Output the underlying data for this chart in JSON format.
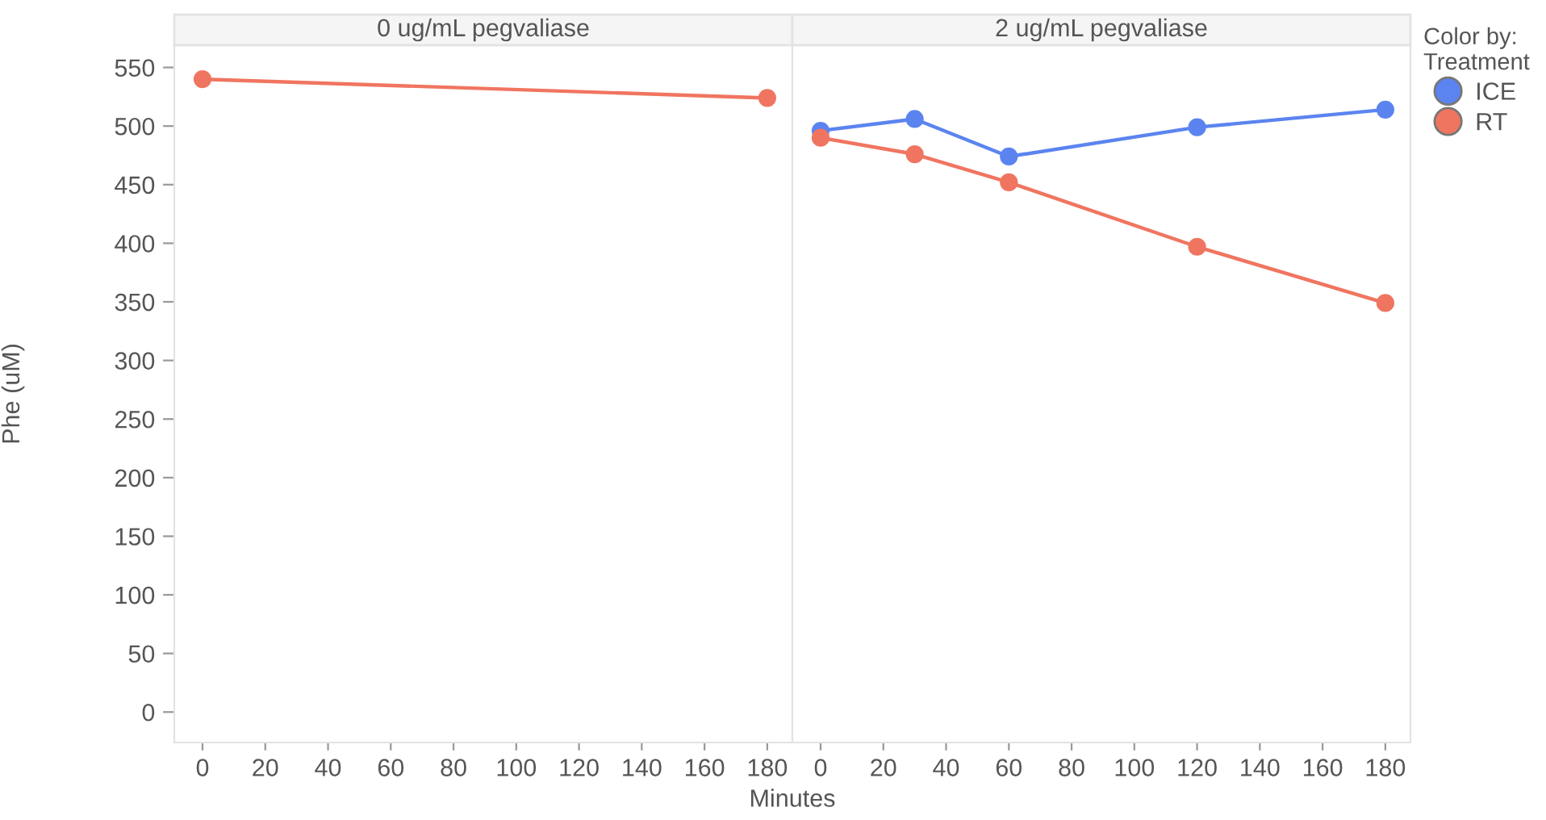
{
  "chart_data": [
    {
      "type": "line",
      "title": "0 ug/mL pegvaliase",
      "xlabel": "Minutes",
      "ylabel": "Phe (uM)",
      "marker": "circle",
      "legend": false,
      "grid": false,
      "xlim": [
        -9,
        188
      ],
      "xticks": [
        0,
        20,
        40,
        60,
        80,
        100,
        120,
        140,
        160,
        180
      ],
      "ylim": [
        -26,
        569
      ],
      "yticks": [
        0,
        50,
        100,
        150,
        200,
        250,
        300,
        350,
        400,
        450,
        500,
        550
      ],
      "series": [
        {
          "color": "#f07560",
          "x": [
            0,
            180
          ],
          "values": [
            540,
            524
          ]
        }
      ]
    },
    {
      "type": "line",
      "title": "2 ug/mL pegvaliase",
      "legend_title": "Color by:\nTreatment",
      "legend": "top right",
      "marker": "circle",
      "grid": false,
      "tick_labels": "x",
      "xlim": [
        -9,
        188
      ],
      "xticks": [
        0,
        20,
        40,
        60,
        80,
        100,
        120,
        140,
        160,
        180
      ],
      "ylim": [
        -26,
        569
      ],
      "yticks": [
        0,
        50,
        100,
        150,
        200,
        250,
        300,
        350,
        400,
        450,
        500,
        550
      ],
      "series": [
        {
          "name": "ICE",
          "color": "#5b84f0",
          "x": [
            0,
            30,
            60,
            120,
            180
          ],
          "values": [
            496,
            506,
            474,
            499,
            514
          ]
        },
        {
          "name": "RT",
          "color": "#f07560",
          "x": [
            0,
            30,
            60,
            120,
            180
          ],
          "values": [
            490,
            476,
            452,
            397,
            349
          ]
        }
      ]
    }
  ]
}
